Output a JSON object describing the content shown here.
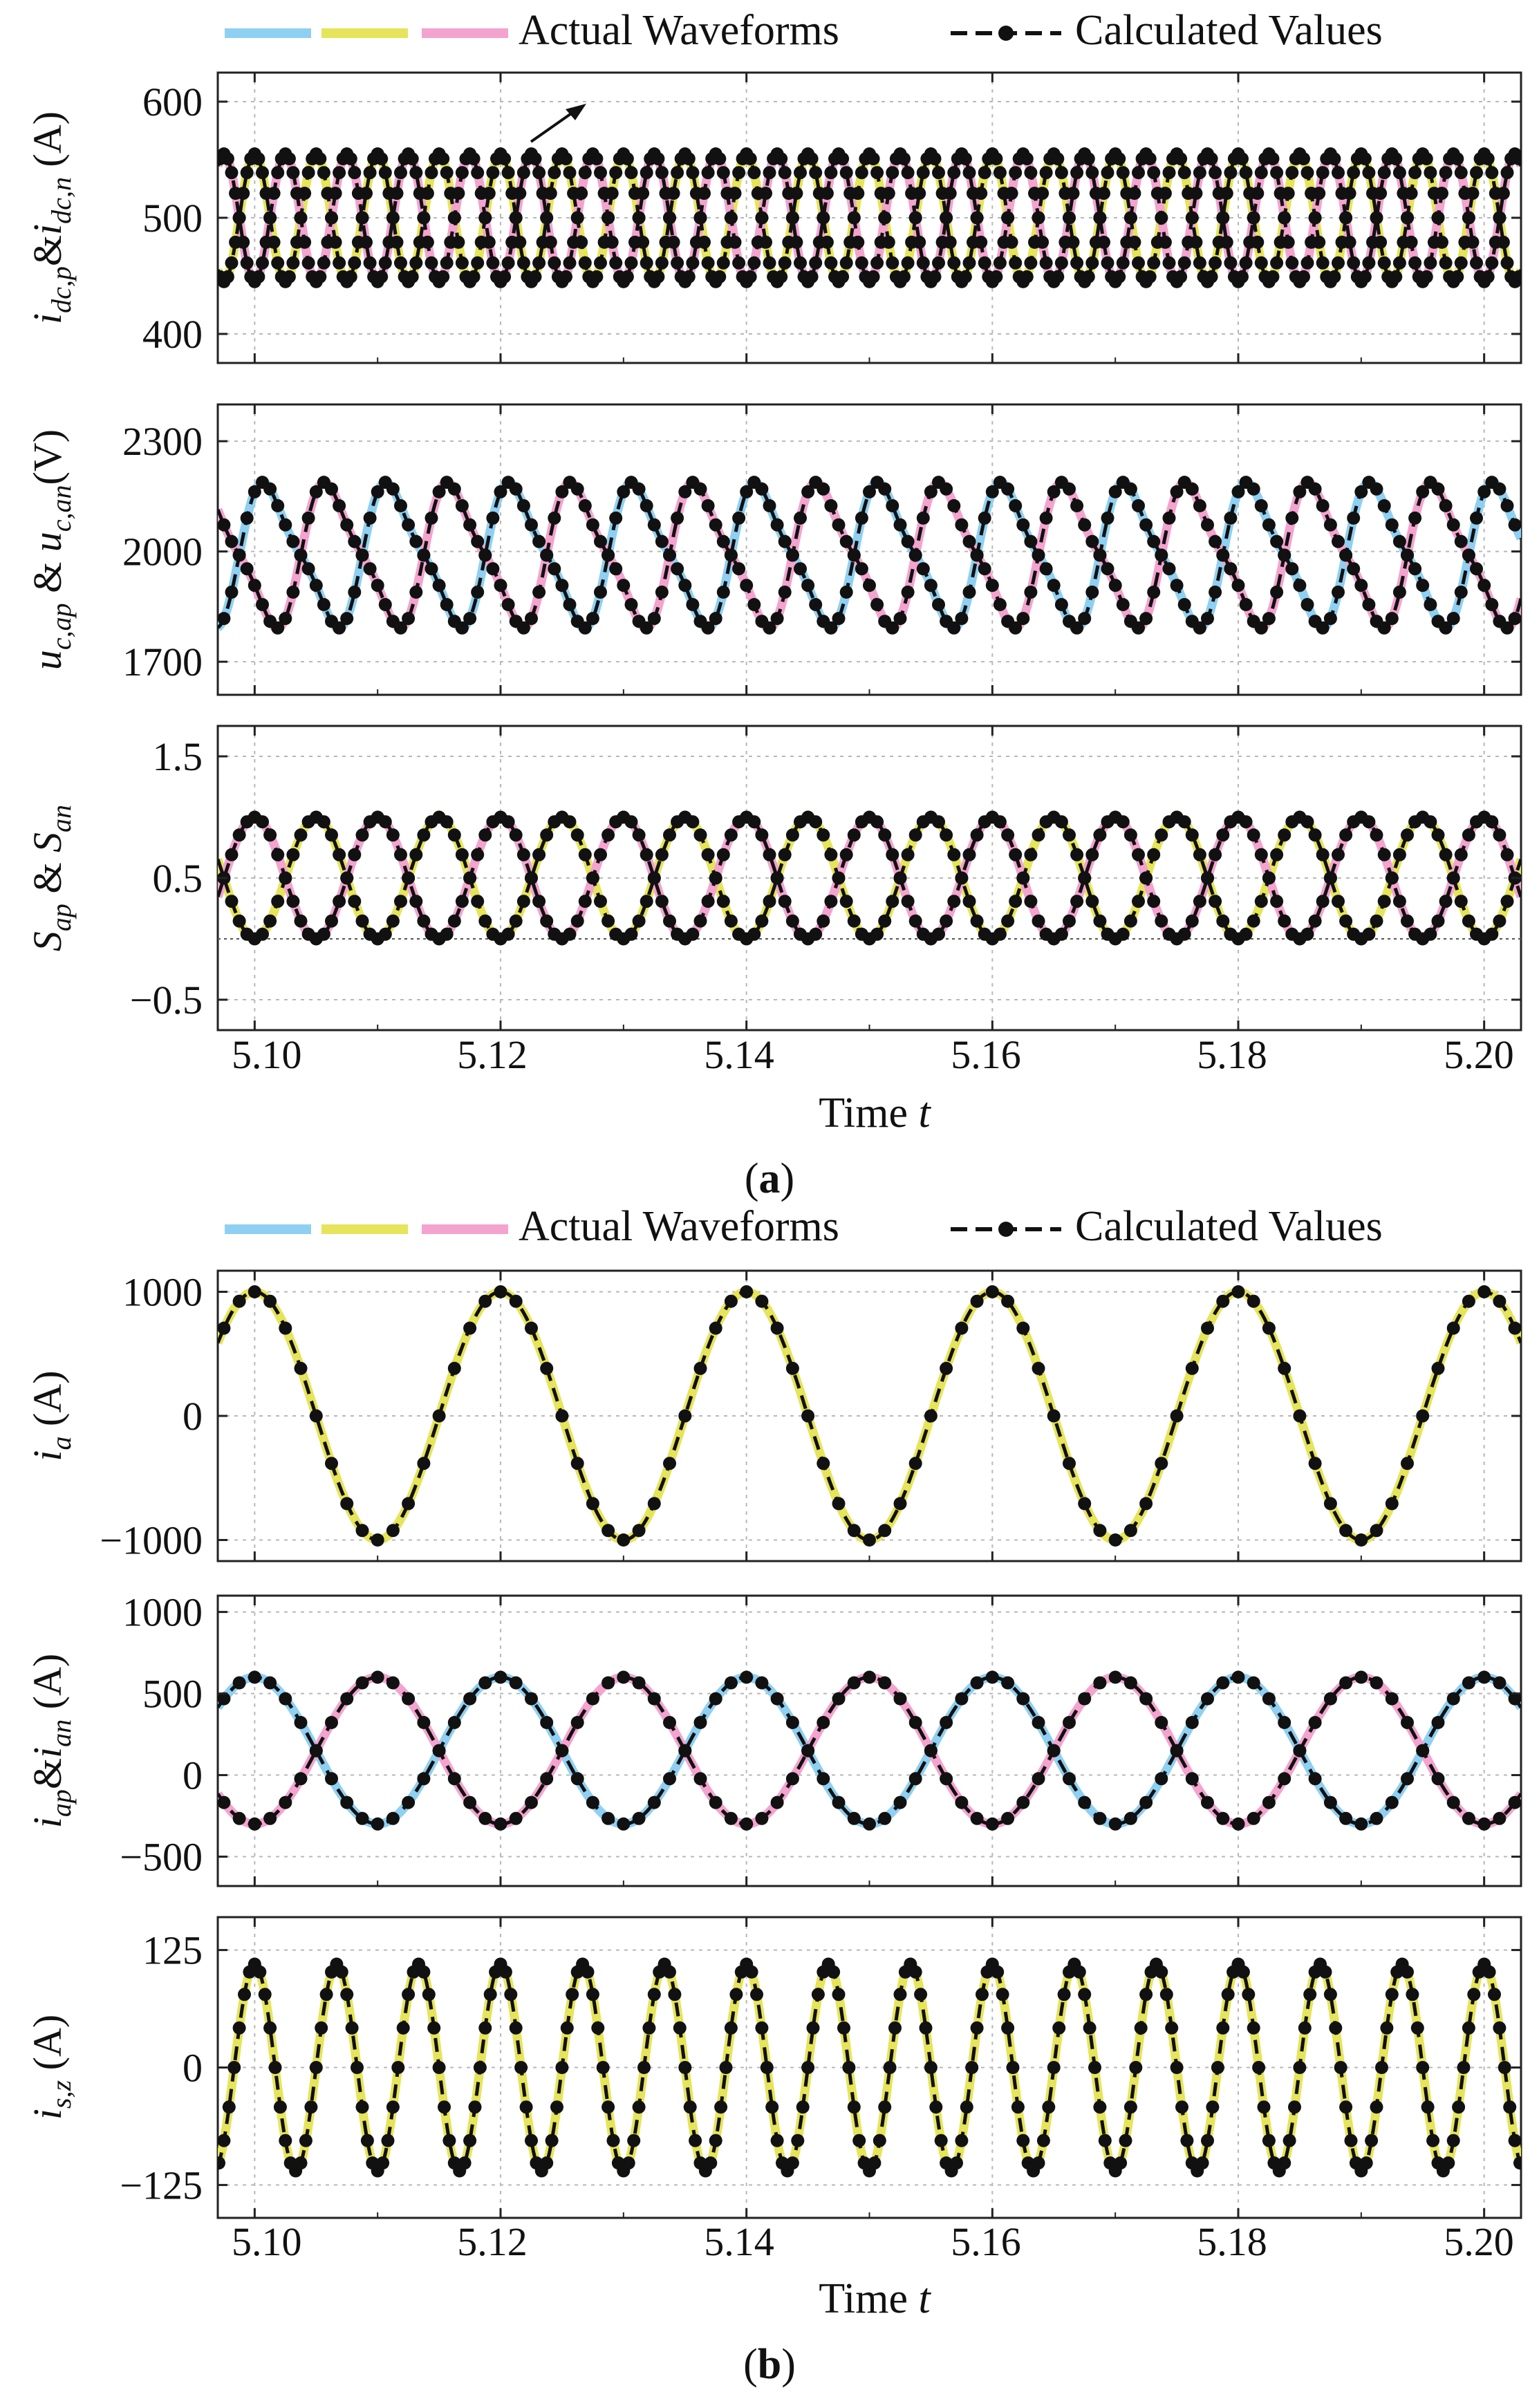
{
  "colors": {
    "blue": "#8fd0f2",
    "yellow": "#e6e45a",
    "pink": "#f4a3cf",
    "calc": "#111111",
    "axis": "#222222",
    "grid": "#b8b8b8"
  },
  "icons": {
    "arrow": "arrow-icon"
  },
  "figures": [
    {
      "caption_letter": "a",
      "legend": {
        "actual_label": "Actual Waveforms",
        "calc_label": "Calculated Values"
      },
      "xlabel": "Time t",
      "x_ticks": [
        "5.10",
        "5.12",
        "5.14",
        "5.16",
        "5.18",
        "5.20"
      ]
    },
    {
      "caption_letter": "b",
      "legend": {
        "actual_label": "Actual Waveforms",
        "calc_label": "Calculated Values"
      },
      "xlabel": "Time t",
      "x_ticks": [
        "5.10",
        "5.12",
        "5.14",
        "5.16",
        "5.18",
        "5.20"
      ]
    }
  ],
  "chart_data": [
    {
      "type": "line",
      "ylabel": "i_dc,p & i_dc,n (A)",
      "xlim": [
        5.097,
        5.203
      ],
      "ylim": [
        375,
        625
      ],
      "yticks": [
        400,
        500,
        600
      ],
      "grid": true,
      "series": [
        {
          "color": "yellow",
          "kind": "sine",
          "offset": 500,
          "amp": 55,
          "freq": 200,
          "phase_deg": 90,
          "calc": true
        },
        {
          "color": "pink",
          "kind": "sine",
          "offset": 500,
          "amp": 55,
          "freq": 200,
          "phase_deg": -90,
          "calc": true
        }
      ]
    },
    {
      "type": "line",
      "ylabel": "u_c,ap & u_c,an (V)",
      "xlim": [
        5.097,
        5.203
      ],
      "ylim": [
        1610,
        2400
      ],
      "yticks": [
        1700,
        2000,
        2300
      ],
      "grid": true,
      "series": [
        {
          "color": "blue",
          "kind": "skewed",
          "offset": 1990,
          "amp": 180,
          "freq": 100,
          "phase_deg": 45,
          "calc": true
        },
        {
          "color": "pink",
          "kind": "skewed",
          "offset": 1990,
          "amp": 180,
          "freq": 100,
          "phase_deg": 225,
          "calc": true
        }
      ]
    },
    {
      "type": "line",
      "ylabel": "S_ap & S_an",
      "xlim": [
        5.097,
        5.203
      ],
      "ylim": [
        -0.75,
        1.75
      ],
      "yticks": [
        -0.5,
        0.5,
        1.5
      ],
      "grid": true,
      "zero_line": 0,
      "series": [
        {
          "color": "yellow",
          "kind": "sine",
          "offset": 0.5,
          "amp": 0.5,
          "freq": 100,
          "phase_deg": -90,
          "calc": true
        },
        {
          "color": "pink",
          "kind": "sine",
          "offset": 0.5,
          "amp": 0.5,
          "freq": 100,
          "phase_deg": 90,
          "calc": true
        }
      ]
    },
    {
      "type": "line",
      "ylabel": "i_a (A)",
      "xlim": [
        5.097,
        5.203
      ],
      "ylim": [
        -1170,
        1170
      ],
      "yticks": [
        -1000,
        0,
        1000
      ],
      "grid": true,
      "series": [
        {
          "color": "yellow",
          "kind": "sine",
          "offset": 0,
          "amp": 1000,
          "freq": 50,
          "phase_deg": 90,
          "calc": true
        }
      ]
    },
    {
      "type": "line",
      "ylabel": "i_ap & i_an (A)",
      "xlim": [
        5.097,
        5.203
      ],
      "ylim": [
        -680,
        1100
      ],
      "yticks": [
        -500,
        0,
        500,
        1000
      ],
      "grid": true,
      "series": [
        {
          "color": "blue",
          "kind": "sine",
          "offset": 150,
          "amp": 450,
          "freq": 50,
          "phase_deg": 90,
          "calc": true
        },
        {
          "color": "pink",
          "kind": "sine",
          "offset": 150,
          "amp": 450,
          "freq": 50,
          "phase_deg": -90,
          "calc": true
        }
      ]
    },
    {
      "type": "line",
      "ylabel": "i_s,z (A)",
      "xlim": [
        5.097,
        5.203
      ],
      "ylim": [
        -160,
        160
      ],
      "yticks": [
        -125,
        0,
        125
      ],
      "grid": true,
      "series": [
        {
          "color": "yellow",
          "kind": "sine",
          "offset": 0,
          "amp": 110,
          "freq": 150,
          "phase_deg": 90,
          "calc": true
        }
      ]
    }
  ]
}
